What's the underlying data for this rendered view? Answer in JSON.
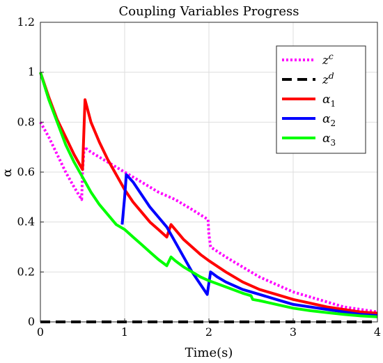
{
  "chart_data": {
    "type": "line",
    "title": "Coupling Variables Progress",
    "xlabel": "Time(s)",
    "ylabel": "α",
    "xlim": [
      0,
      4
    ],
    "ylim": [
      0,
      1.2
    ],
    "x_ticks": [
      0,
      1,
      2,
      3,
      4
    ],
    "x_tick_labels": [
      "0",
      "1",
      "2",
      "3",
      "4"
    ],
    "y_ticks": [
      0,
      0.2,
      0.4,
      0.6,
      0.8,
      1.0,
      1.2
    ],
    "y_tick_labels": [
      "0",
      "0.2",
      "0.4",
      "0.6",
      "0.8",
      "1",
      "1.2"
    ],
    "grid": true,
    "legend_position": "top-right",
    "series": [
      {
        "name": "z^c",
        "legend_base": "z",
        "legend_sup": "c",
        "color": "#ff00ff",
        "style": "dotted",
        "x": [
          0,
          0.1,
          0.2,
          0.3,
          0.4,
          0.49,
          0.5,
          0.52,
          0.6,
          0.8,
          1.0,
          1.2,
          1.4,
          1.6,
          1.8,
          1.99,
          2.0,
          2.02,
          2.2,
          2.4,
          2.6,
          2.8,
          3.0,
          3.2,
          3.4,
          3.6,
          3.8,
          4.0
        ],
        "y": [
          0.8,
          0.74,
          0.67,
          0.6,
          0.54,
          0.49,
          0.6,
          0.7,
          0.68,
          0.64,
          0.6,
          0.56,
          0.52,
          0.49,
          0.45,
          0.41,
          0.35,
          0.3,
          0.26,
          0.22,
          0.18,
          0.15,
          0.12,
          0.1,
          0.08,
          0.06,
          0.05,
          0.04
        ]
      },
      {
        "name": "z^d",
        "legend_base": "z",
        "legend_sup": "d",
        "color": "#000000",
        "style": "dashed",
        "x": [
          0,
          4
        ],
        "y": [
          0,
          0
        ]
      },
      {
        "name": "α_1",
        "legend_base": "α",
        "legend_sub": "1",
        "color": "#ff0000",
        "style": "solid",
        "x": [
          0,
          0.1,
          0.2,
          0.3,
          0.4,
          0.5,
          0.53,
          0.6,
          0.7,
          0.8,
          0.9,
          1.0,
          1.1,
          1.2,
          1.3,
          1.4,
          1.5,
          1.55,
          1.6,
          1.7,
          1.8,
          1.9,
          2.0,
          2.2,
          2.4,
          2.6,
          2.8,
          3.0,
          3.2,
          3.4,
          3.6,
          3.8,
          4.0
        ],
        "y": [
          1.0,
          0.9,
          0.81,
          0.74,
          0.67,
          0.61,
          0.89,
          0.8,
          0.72,
          0.65,
          0.59,
          0.53,
          0.48,
          0.44,
          0.4,
          0.37,
          0.34,
          0.39,
          0.37,
          0.33,
          0.3,
          0.27,
          0.245,
          0.2,
          0.16,
          0.13,
          0.11,
          0.09,
          0.075,
          0.06,
          0.05,
          0.04,
          0.035
        ]
      },
      {
        "name": "α_2",
        "legend_base": "α",
        "legend_sub": "2",
        "color": "#0000ff",
        "style": "solid",
        "x": [
          0.97,
          1.0,
          1.02,
          1.1,
          1.2,
          1.3,
          1.4,
          1.5,
          1.6,
          1.7,
          1.8,
          1.9,
          1.98,
          2.02,
          2.1,
          2.2,
          2.4,
          2.6,
          2.8,
          3.0,
          3.2,
          3.4,
          3.6,
          3.8,
          4.0
        ],
        "y": [
          0.39,
          0.5,
          0.59,
          0.56,
          0.51,
          0.46,
          0.42,
          0.38,
          0.32,
          0.26,
          0.2,
          0.15,
          0.11,
          0.2,
          0.18,
          0.16,
          0.13,
          0.11,
          0.09,
          0.07,
          0.06,
          0.05,
          0.04,
          0.03,
          0.025
        ]
      },
      {
        "name": "α_3",
        "legend_base": "α",
        "legend_sub": "3",
        "color": "#00ff00",
        "style": "solid",
        "x": [
          0,
          0.1,
          0.2,
          0.3,
          0.4,
          0.5,
          0.6,
          0.7,
          0.8,
          0.9,
          1.0,
          1.1,
          1.2,
          1.3,
          1.4,
          1.5,
          1.55,
          1.6,
          1.7,
          1.8,
          1.9,
          2.0,
          2.2,
          2.4,
          2.5,
          2.52,
          2.6,
          2.8,
          3.0,
          3.2,
          3.4,
          3.6,
          3.8,
          4.0
        ],
        "y": [
          1.0,
          0.89,
          0.8,
          0.71,
          0.64,
          0.58,
          0.52,
          0.47,
          0.43,
          0.39,
          0.37,
          0.34,
          0.31,
          0.28,
          0.25,
          0.225,
          0.26,
          0.245,
          0.22,
          0.2,
          0.18,
          0.165,
          0.14,
          0.115,
          0.105,
          0.09,
          0.085,
          0.07,
          0.055,
          0.045,
          0.037,
          0.03,
          0.024,
          0.02
        ]
      }
    ]
  }
}
